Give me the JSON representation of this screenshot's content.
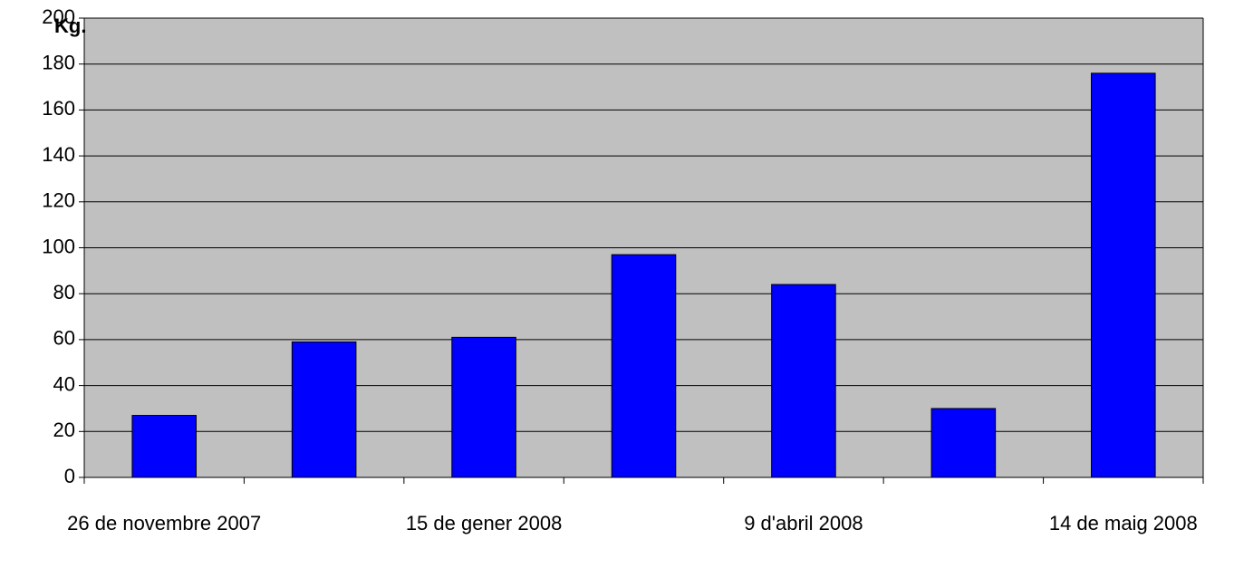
{
  "chart_data": {
    "type": "bar",
    "y_label": "Kg.",
    "categories": [
      "26 de novembre 2007",
      null,
      "15 de gener 2008",
      null,
      "9 d'abril 2008",
      null,
      "14 de maig 2008"
    ],
    "values": [
      27,
      59,
      61,
      97,
      84,
      30,
      176
    ],
    "color": "#0000ff",
    "ylim": [
      0,
      200
    ],
    "yticks": [
      0,
      20,
      40,
      60,
      80,
      100,
      120,
      140,
      160,
      180,
      200
    ],
    "grid": true
  }
}
